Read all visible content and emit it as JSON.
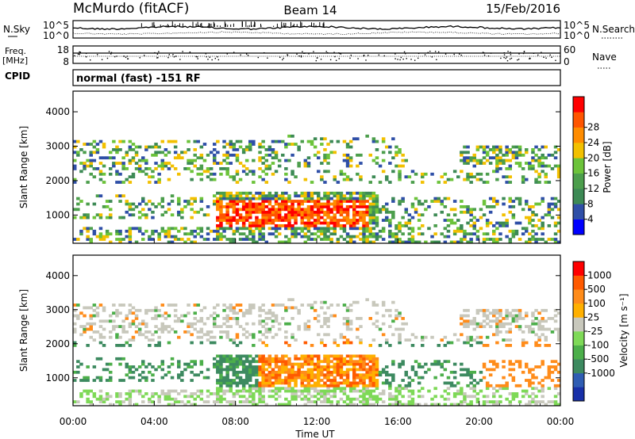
{
  "header": {
    "station": "McMurdo (fitACF)",
    "beam": "Beam 14",
    "date": "15/Feb/2016"
  },
  "top_panels": {
    "nsky_label": "N.Sky",
    "nsearch_label": "N.Search",
    "noise_ticks": [
      "10^5",
      "10^0"
    ],
    "freq_label_1": "Freq.",
    "freq_label_2": "[MHz]",
    "freq_ticks": [
      "18",
      "8"
    ],
    "nave_label": "Nave",
    "nave_ticks": [
      "60",
      "0"
    ],
    "cpid_label": "CPID",
    "cpid_value": "normal (fast) -151 RF"
  },
  "colors": {
    "power": [
      "#0000ff",
      "#2f4fa7",
      "#3d8a55",
      "#4c9e4c",
      "#6cc33a",
      "#f2c000",
      "#ff8c00",
      "#ff5500",
      "#ff0000"
    ],
    "velocity": [
      "#1830a8",
      "#2f5db3",
      "#3d8a60",
      "#4caf4a",
      "#7ed957",
      "#c8c8bc",
      "#ffb000",
      "#ff8c1a",
      "#ff5a00",
      "#ff0000"
    ]
  },
  "chart_data": [
    {
      "type": "heatmap",
      "name": "power",
      "xlabel": "",
      "ylabel": "Slant Range [km]",
      "xlim": [
        "00:00",
        "24:00"
      ],
      "ylim": [
        180,
        4600
      ],
      "y_ticks": [
        1000,
        2000,
        3000,
        4000
      ],
      "colorbar_label": "Power [dB]",
      "colorbar_ticks": [
        "4",
        "8",
        "12",
        "16",
        "20",
        "24",
        "28"
      ]
    },
    {
      "type": "heatmap",
      "name": "velocity",
      "xlabel": "Time UT",
      "ylabel": "Slant Range [km]",
      "xlim": [
        "00:00",
        "24:00"
      ],
      "ylim": [
        180,
        4600
      ],
      "x_ticks": [
        "00:00",
        "04:00",
        "08:00",
        "12:00",
        "16:00",
        "20:00",
        "00:00"
      ],
      "y_ticks": [
        1000,
        2000,
        3000,
        4000
      ],
      "colorbar_label": "Velocity [m s⁻¹]",
      "colorbar_ticks": [
        "1000",
        "500",
        "100",
        "25",
        "-25",
        "-100",
        "-500",
        "-1000"
      ]
    }
  ]
}
